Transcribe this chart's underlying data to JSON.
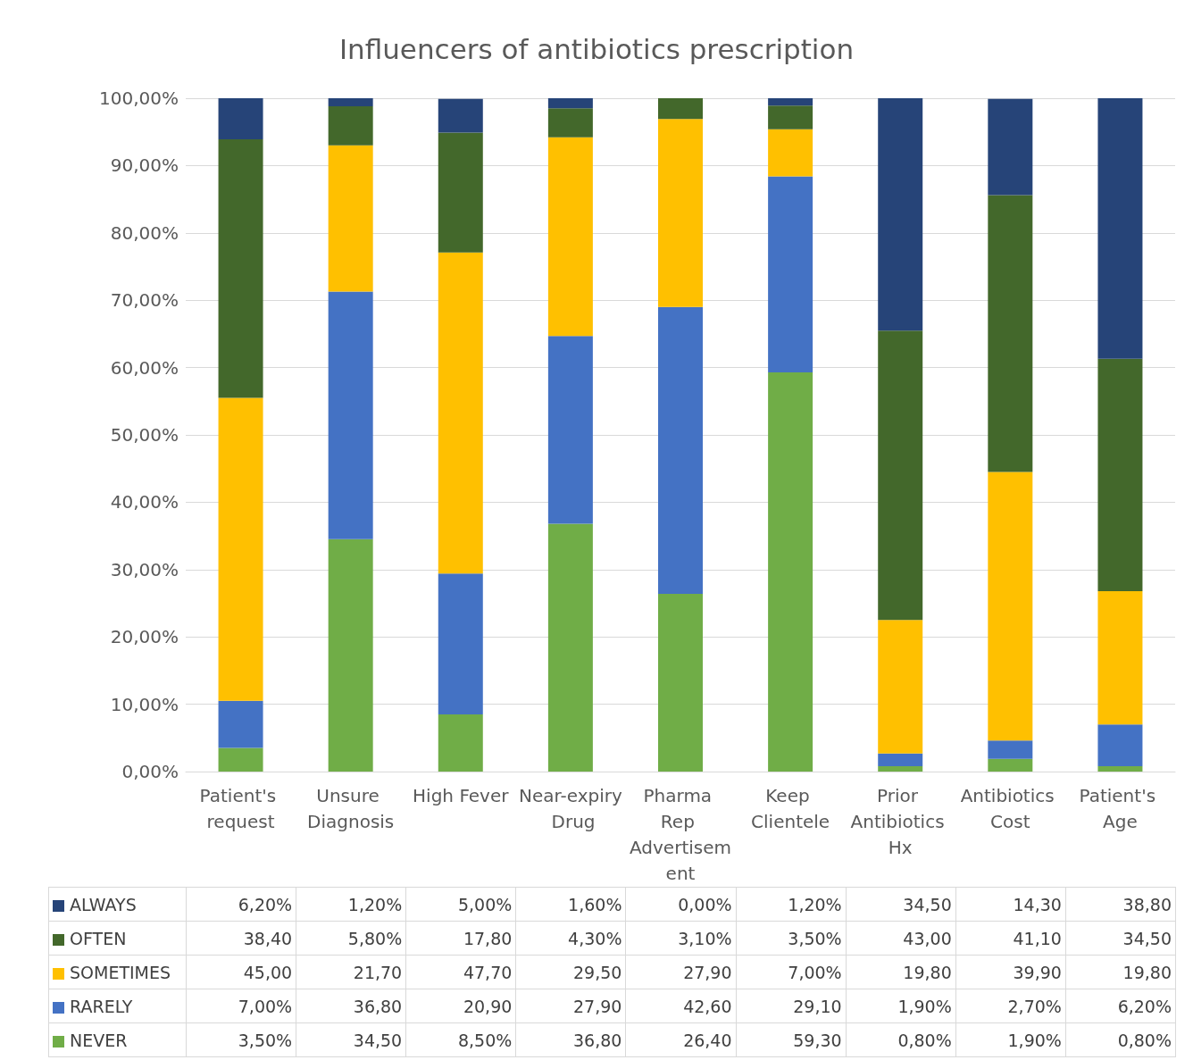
{
  "chart_data": {
    "type": "bar",
    "title": "Influencers of antibiotics prescription",
    "stacked": true,
    "grid": "y",
    "legend": "bottom",
    "categories": [
      "Patient's request",
      "Unsure Diagnosis",
      "High Fever",
      "Near-expiry Drug",
      "Pharma Rep Advertisement",
      "Keep Clientele",
      "Prior Antibiotics Hx",
      "Antibiotics Cost",
      "Patient's Age"
    ],
    "ylim": [
      0,
      100
    ],
    "yticks": [
      {
        "value": 0,
        "label": "0,00%"
      },
      {
        "value": 10,
        "label": "10,00%"
      },
      {
        "value": 20,
        "label": "20,00%"
      },
      {
        "value": 30,
        "label": "30,00%"
      },
      {
        "value": 40,
        "label": "40,00%"
      },
      {
        "value": 50,
        "label": "50,00%"
      },
      {
        "value": 60,
        "label": "60,00%"
      },
      {
        "value": 70,
        "label": "70,00%"
      },
      {
        "value": 80,
        "label": "80,00%"
      },
      {
        "value": 90,
        "label": "90,00%"
      },
      {
        "value": 100,
        "label": "100,00%"
      }
    ],
    "series": [
      {
        "name": "NEVER",
        "color": "#70ad47",
        "values": [
          3.5,
          34.5,
          8.5,
          36.8,
          26.4,
          59.3,
          0.8,
          1.9,
          0.8
        ],
        "value_labels": [
          "3,50%",
          "34,50",
          "8,50%",
          "36,80",
          "26,40",
          "59,30",
          "0,80%",
          "1,90%",
          "0,80%"
        ]
      },
      {
        "name": "RARELY",
        "color": "#4472c4",
        "values": [
          7.0,
          36.8,
          20.9,
          27.9,
          42.6,
          29.1,
          1.9,
          2.7,
          6.2
        ],
        "value_labels": [
          "7,00%",
          "36,80",
          "20,90",
          "27,90",
          "42,60",
          "29,10",
          "1,90%",
          "2,70%",
          "6,20%"
        ]
      },
      {
        "name": "SOMETIMES",
        "color": "#ffc000",
        "values": [
          45.0,
          21.7,
          47.7,
          29.5,
          27.9,
          7.0,
          19.8,
          39.9,
          19.8
        ],
        "value_labels": [
          "45,00",
          "21,70",
          "47,70",
          "29,50",
          "27,90",
          "7,00%",
          "19,80",
          "39,90",
          "19,80"
        ]
      },
      {
        "name": "OFTEN",
        "color": "#43682b",
        "values": [
          38.4,
          5.8,
          17.8,
          4.3,
          3.1,
          3.5,
          43.0,
          41.1,
          34.5
        ],
        "value_labels": [
          "38,40",
          "5,80%",
          "17,80",
          "4,30%",
          "3,10%",
          "3,50%",
          "43,00",
          "41,10",
          "34,50"
        ]
      },
      {
        "name": "ALWAYS",
        "color": "#264478",
        "values": [
          6.2,
          1.2,
          5.0,
          1.6,
          0.0,
          1.2,
          34.5,
          14.3,
          38.8
        ],
        "value_labels": [
          "6,20%",
          "1,20%",
          "5,00%",
          "1,60%",
          "0,00%",
          "1,20%",
          "34,50",
          "14,30",
          "38,80"
        ]
      }
    ]
  }
}
